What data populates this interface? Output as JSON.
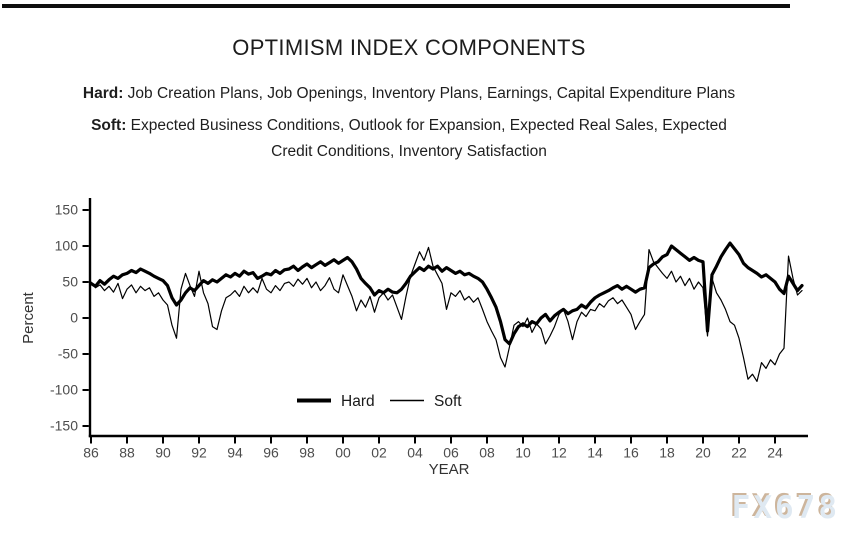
{
  "header": {
    "title": "OPTIMISM INDEX COMPONENTS",
    "hard_label": "Hard:",
    "hard_text": " Job Creation Plans, Job Openings, Inventory Plans, Earnings, Capital Expenditure Plans",
    "soft_label": "Soft:",
    "soft_line1": " Expected Business Conditions, Outlook for Expansion, Expected Real Sales, Expected",
    "soft_line2": "Credit Conditions, Inventory Satisfaction"
  },
  "watermark": {
    "text": "FX678",
    "fill": "#dfe9f2",
    "shadow": "#cdb59c"
  },
  "chart_data": {
    "type": "line",
    "title": "OPTIMISM INDEX COMPONENTS",
    "xlabel": "YEAR",
    "ylabel": "Percent",
    "xlim": [
      1985.9,
      2025.9
    ],
    "ylim": [
      -150,
      150
    ],
    "grid": false,
    "legend_position": "inside-bottom-center",
    "line_color": "#000000",
    "axis_color": "#000000",
    "tick_label_color": "#4d4d4d",
    "axis_label_color": "#333333",
    "y_ticks": [
      {
        "label": "150",
        "value": 150
      },
      {
        "label": "100",
        "value": 100
      },
      {
        "label": "50",
        "value": 50
      },
      {
        "label": "0",
        "value": 0
      },
      {
        "label": "-50",
        "value": -50
      },
      {
        "label": "-100",
        "value": -100
      },
      {
        "label": "-150",
        "value": -150
      }
    ],
    "x_ticks": [
      {
        "label": "86",
        "year": 1986
      },
      {
        "label": "88",
        "year": 1988
      },
      {
        "label": "90",
        "year": 1990
      },
      {
        "label": "92",
        "year": 1992
      },
      {
        "label": "94",
        "year": 1994
      },
      {
        "label": "96",
        "year": 1996
      },
      {
        "label": "98",
        "year": 1998
      },
      {
        "label": "00",
        "year": 2000
      },
      {
        "label": "02",
        "year": 2002
      },
      {
        "label": "04",
        "year": 2004
      },
      {
        "label": "06",
        "year": 2006
      },
      {
        "label": "08",
        "year": 2008
      },
      {
        "label": "10",
        "year": 2010
      },
      {
        "label": "12",
        "year": 2012
      },
      {
        "label": "14",
        "year": 2014
      },
      {
        "label": "16",
        "year": 2016
      },
      {
        "label": "18",
        "year": 2018
      },
      {
        "label": "20",
        "year": 2020
      },
      {
        "label": "22",
        "year": 2022
      },
      {
        "label": "24",
        "year": 2024
      }
    ],
    "x_start": 1986.0,
    "x_step": 0.25,
    "series": [
      {
        "name": "Hard",
        "stroke_width": 3.2,
        "values": [
          48,
          44,
          52,
          47,
          53,
          58,
          55,
          60,
          62,
          66,
          63,
          68,
          65,
          62,
          58,
          55,
          52,
          45,
          28,
          18,
          25,
          35,
          42,
          38,
          45,
          52,
          48,
          53,
          50,
          55,
          60,
          57,
          62,
          58,
          65,
          61,
          63,
          55,
          58,
          62,
          60,
          66,
          62,
          67,
          68,
          72,
          66,
          71,
          75,
          70,
          74,
          78,
          73,
          77,
          81,
          76,
          80,
          84,
          78,
          68,
          55,
          48,
          42,
          32,
          38,
          35,
          40,
          36,
          35,
          40,
          48,
          58,
          64,
          70,
          66,
          72,
          68,
          72,
          65,
          70,
          66,
          62,
          65,
          60,
          62,
          58,
          55,
          50,
          40,
          28,
          15,
          -5,
          -30,
          -36,
          -22,
          -12,
          -8,
          -12,
          -5,
          -8,
          0,
          5,
          -4,
          3,
          8,
          12,
          6,
          10,
          12,
          18,
          14,
          22,
          28,
          32,
          35,
          38,
          42,
          45,
          40,
          44,
          40,
          36,
          40,
          42,
          70,
          75,
          78,
          85,
          88,
          100,
          95,
          90,
          85,
          80,
          84,
          80,
          78,
          -18,
          60,
          72,
          85,
          95,
          104,
          96,
          88,
          76,
          70,
          66,
          62,
          57,
          60,
          55,
          50,
          40,
          34,
          58,
          48,
          38,
          45
        ]
      },
      {
        "name": "Soft",
        "stroke_width": 1.2,
        "values": [
          50,
          42,
          46,
          38,
          44,
          36,
          48,
          27,
          40,
          46,
          35,
          44,
          38,
          42,
          30,
          35,
          25,
          18,
          -10,
          -28,
          40,
          62,
          45,
          30,
          65,
          35,
          20,
          -12,
          -16,
          10,
          28,
          32,
          38,
          30,
          44,
          35,
          42,
          35,
          55,
          40,
          35,
          45,
          38,
          48,
          50,
          44,
          54,
          47,
          55,
          42,
          50,
          38,
          45,
          56,
          40,
          35,
          60,
          45,
          30,
          10,
          25,
          15,
          30,
          8,
          28,
          35,
          25,
          32,
          15,
          -2,
          30,
          58,
          75,
          92,
          80,
          98,
          72,
          60,
          48,
          12,
          35,
          30,
          38,
          25,
          30,
          22,
          28,
          12,
          -5,
          -18,
          -30,
          -55,
          -68,
          -40,
          -10,
          -5,
          -12,
          0,
          -20,
          -8,
          -15,
          -36,
          -25,
          -12,
          5,
          12,
          -5,
          -30,
          -5,
          8,
          2,
          12,
          10,
          20,
          15,
          24,
          28,
          20,
          25,
          15,
          5,
          -16,
          -5,
          5,
          95,
          78,
          70,
          62,
          55,
          65,
          50,
          58,
          45,
          55,
          40,
          50,
          42,
          -25,
          55,
          35,
          25,
          12,
          -5,
          -10,
          -28,
          -55,
          -85,
          -78,
          -88,
          -62,
          -70,
          -58,
          -65,
          -50,
          -42,
          86,
          55,
          32,
          38
        ]
      }
    ]
  }
}
